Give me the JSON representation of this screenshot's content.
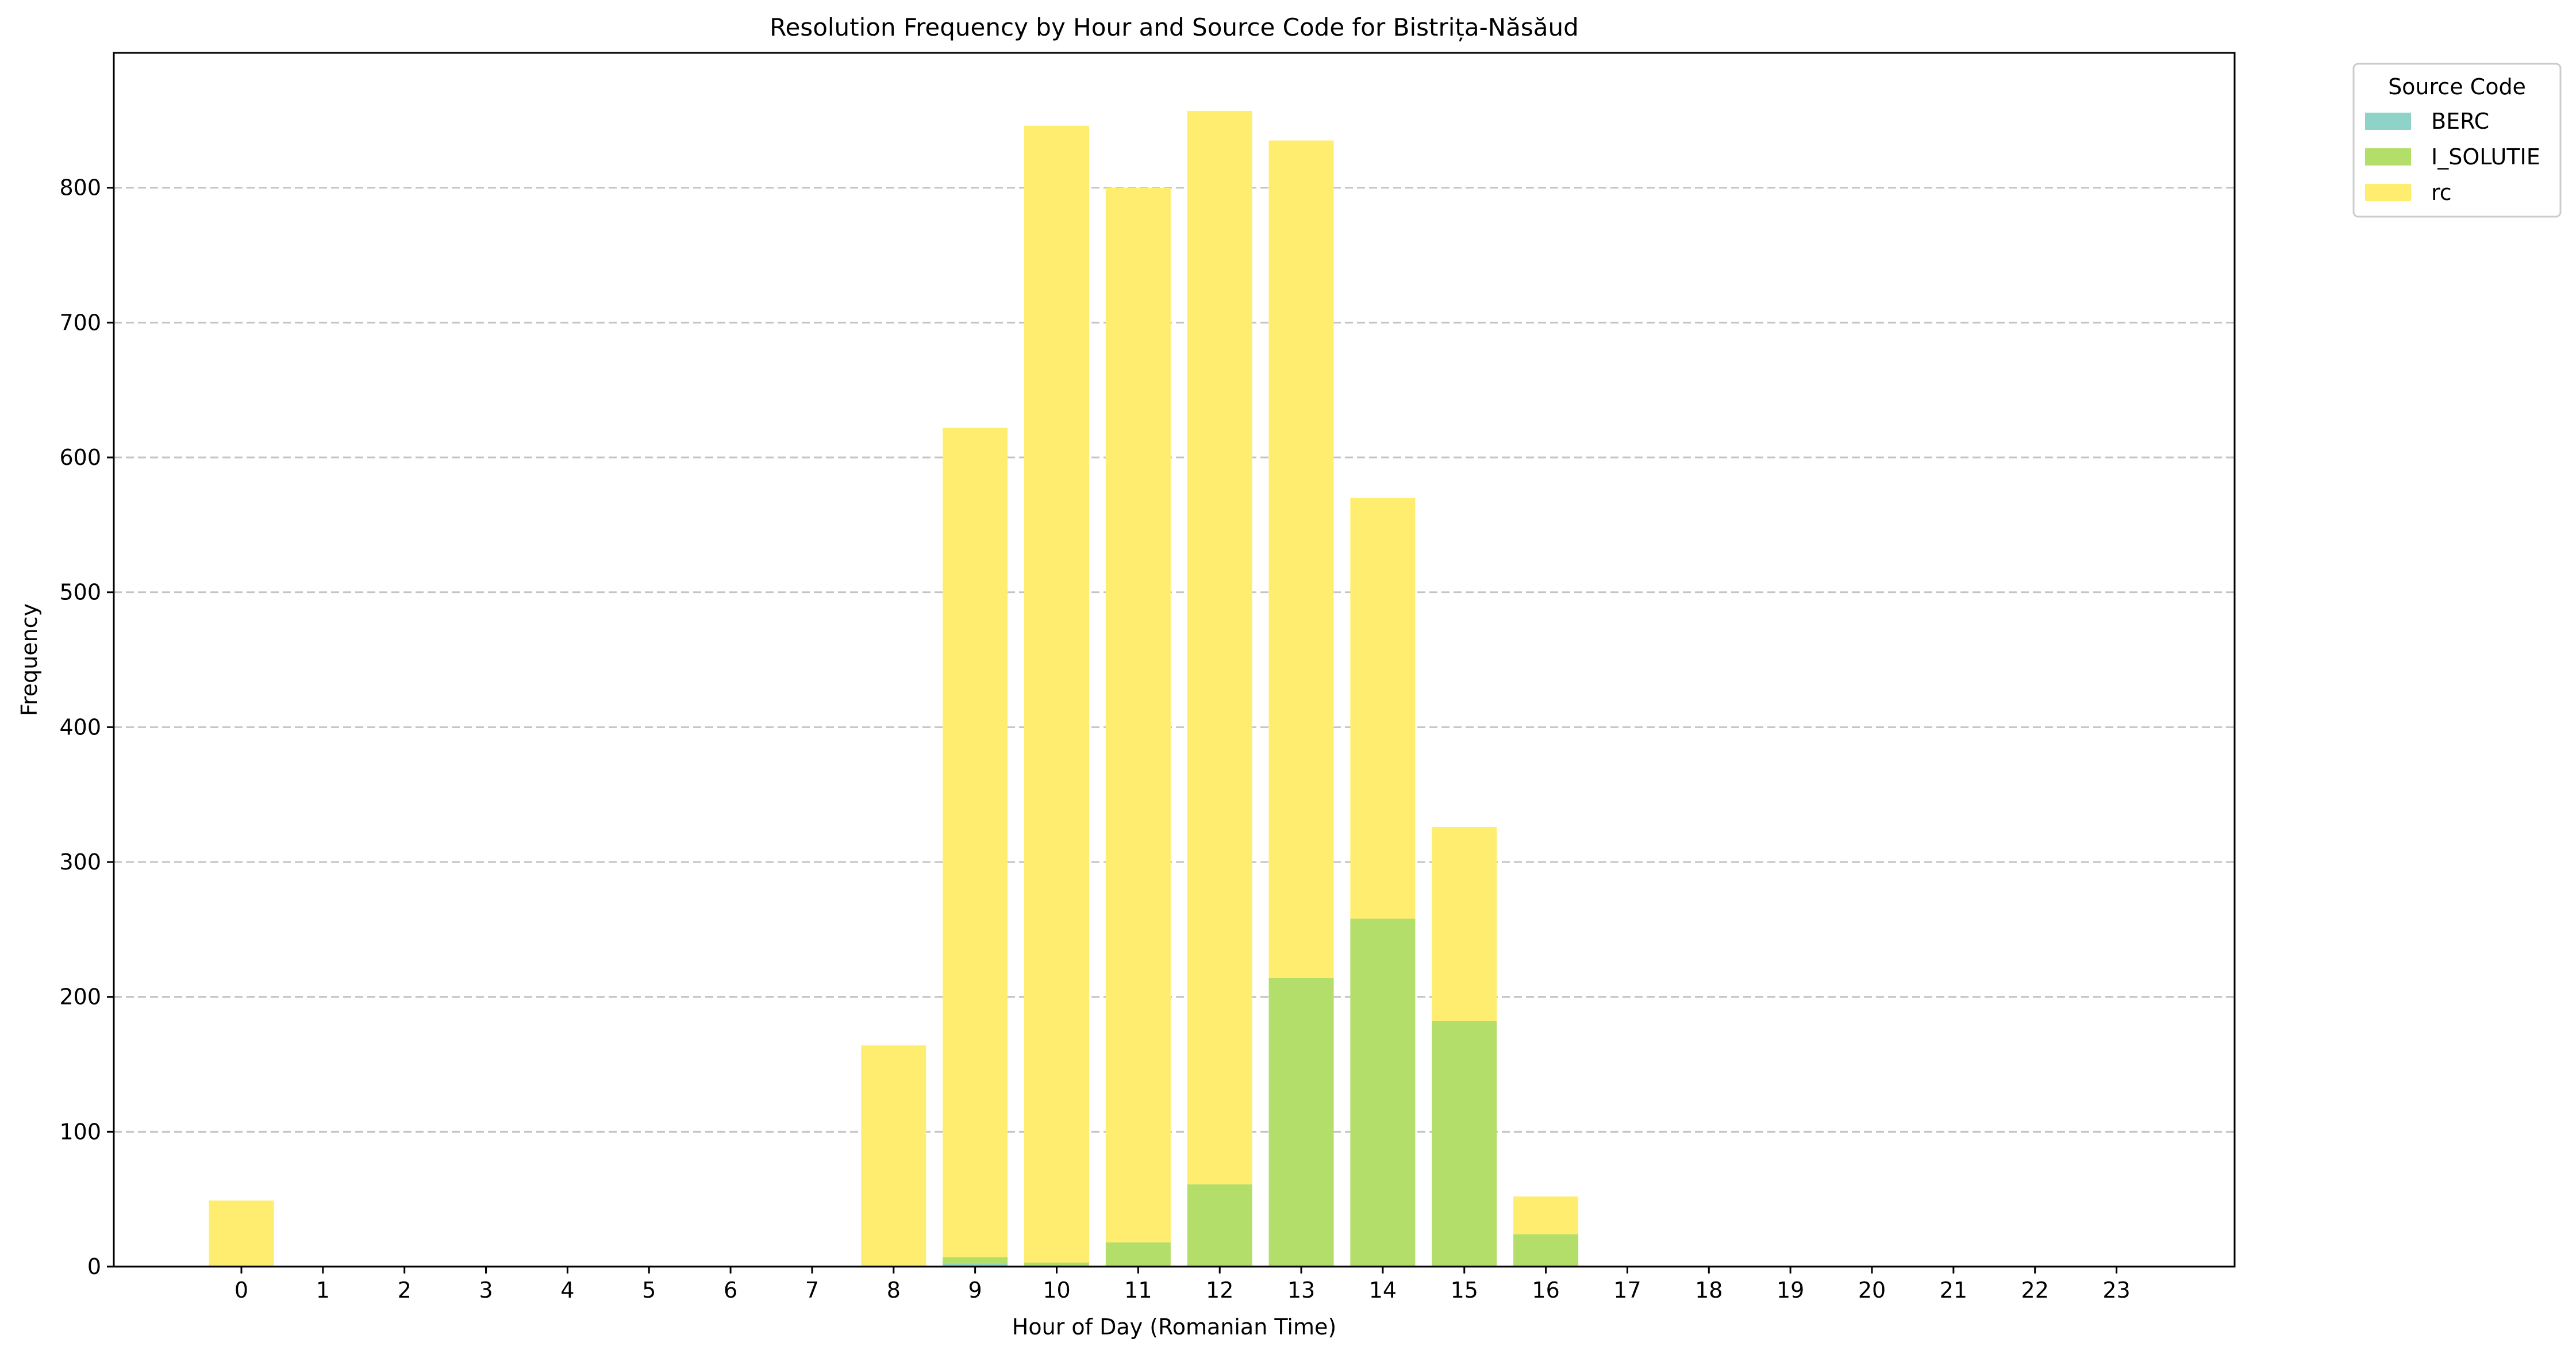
{
  "chart_data": {
    "type": "bar",
    "stacked": true,
    "title": "Resolution Frequency by Hour and Source Code for Bistrița-Năsăud",
    "xlabel": "Hour of Day (Romanian Time)",
    "ylabel": "Frequency",
    "categories": [
      "0",
      "1",
      "2",
      "3",
      "4",
      "5",
      "6",
      "7",
      "8",
      "9",
      "10",
      "11",
      "12",
      "13",
      "14",
      "15",
      "16",
      "17",
      "18",
      "19",
      "20",
      "21",
      "22",
      "23"
    ],
    "ylim": [
      0,
      900
    ],
    "yticks": [
      0,
      100,
      200,
      300,
      400,
      500,
      600,
      700,
      800
    ],
    "grid": "y-dashed",
    "legend": {
      "title": "Source Code",
      "placement": "outside-top-right"
    },
    "series": [
      {
        "name": "BERC",
        "color": "#8dd3c7",
        "values": [
          0,
          0,
          0,
          0,
          0,
          0,
          0,
          0,
          0,
          2,
          1,
          0,
          0,
          0,
          0,
          0,
          0,
          0,
          0,
          0,
          0,
          0,
          0,
          0
        ]
      },
      {
        "name": "I_SOLUTIE",
        "color": "#b3de69",
        "values": [
          0,
          0,
          0,
          0,
          0,
          0,
          0,
          0,
          0,
          5,
          2,
          18,
          61,
          214,
          258,
          182,
          24,
          0,
          0,
          0,
          0,
          0,
          0,
          0
        ]
      },
      {
        "name": "rc",
        "color": "#ffed6f",
        "values": [
          49,
          0,
          0,
          0,
          0,
          0,
          0,
          0,
          164,
          615,
          843,
          782,
          796,
          621,
          312,
          144,
          28,
          0,
          0,
          0,
          0,
          0,
          0,
          0
        ]
      }
    ]
  }
}
